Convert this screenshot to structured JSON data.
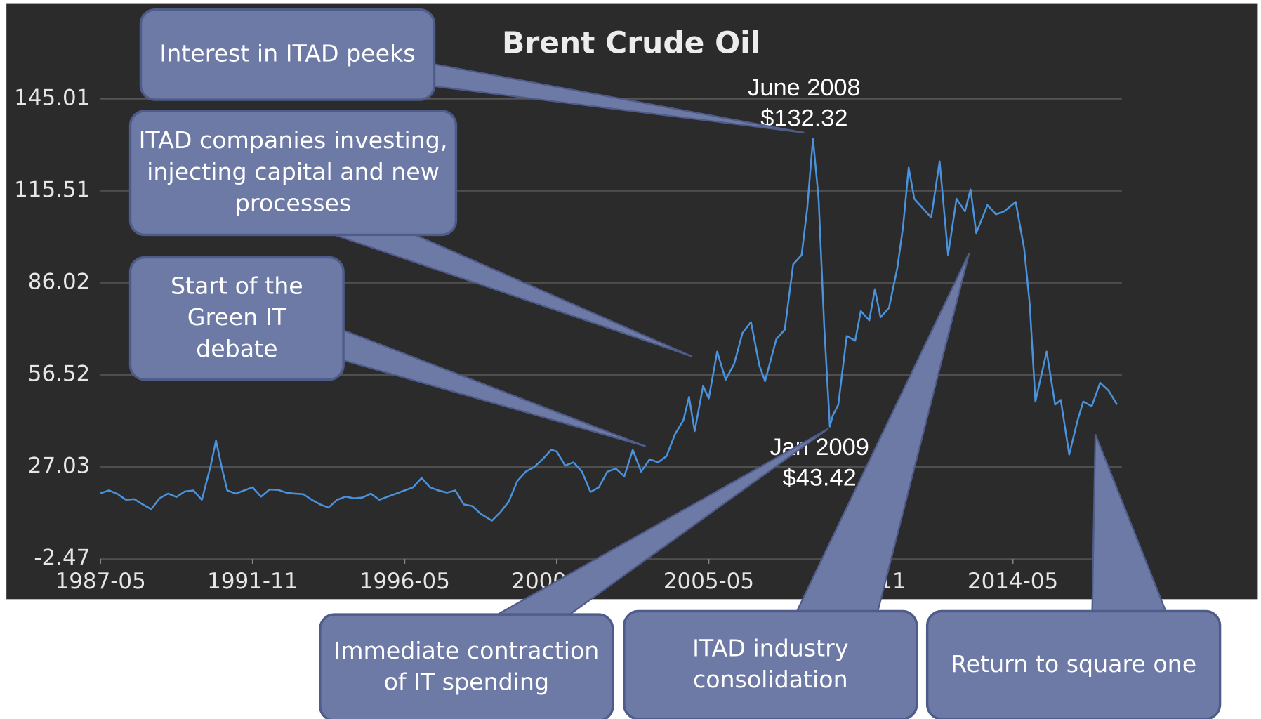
{
  "chart_data": {
    "type": "line",
    "title": "Brent Crude Oil",
    "color": "#4a92dc",
    "grid": true,
    "x": [
      "1987-05",
      "1987-08",
      "1987-11",
      "1988-02",
      "1988-05",
      "1988-08",
      "1988-11",
      "1989-02",
      "1989-05",
      "1989-08",
      "1989-11",
      "1990-02",
      "1990-05",
      "1990-08",
      "1990-10",
      "1990-12",
      "1991-02",
      "1991-05",
      "1991-08",
      "1991-11",
      "1992-02",
      "1992-05",
      "1992-08",
      "1992-11",
      "1993-02",
      "1993-05",
      "1993-08",
      "1993-11",
      "1994-02",
      "1994-05",
      "1994-08",
      "1994-11",
      "1995-02",
      "1995-05",
      "1995-08",
      "1995-11",
      "1996-02",
      "1996-05",
      "1996-08",
      "1996-11",
      "1997-02",
      "1997-05",
      "1997-08",
      "1997-11",
      "1998-02",
      "1998-05",
      "1998-08",
      "1998-12",
      "1999-03",
      "1999-06",
      "1999-09",
      "1999-12",
      "2000-03",
      "2000-06",
      "2000-09",
      "2000-11",
      "2001-02",
      "2001-05",
      "2001-08",
      "2001-11",
      "2002-02",
      "2002-05",
      "2002-08",
      "2002-11",
      "2003-02",
      "2003-05",
      "2003-08",
      "2003-11",
      "2004-02",
      "2004-05",
      "2004-08",
      "2004-10",
      "2004-12",
      "2005-03",
      "2005-05",
      "2005-08",
      "2005-11",
      "2006-02",
      "2006-05",
      "2006-08",
      "2006-11",
      "2007-01",
      "2007-05",
      "2007-08",
      "2007-11",
      "2008-02",
      "2008-04",
      "2008-06",
      "2008-08",
      "2008-10",
      "2008-12",
      "2009-01",
      "2009-03",
      "2009-06",
      "2009-09",
      "2009-11",
      "2010-02",
      "2010-04",
      "2010-06",
      "2010-09",
      "2010-12",
      "2011-02",
      "2011-04",
      "2011-06",
      "2011-09",
      "2011-12",
      "2012-03",
      "2012-06",
      "2012-09",
      "2012-12",
      "2013-02",
      "2013-04",
      "2013-08",
      "2013-11",
      "2014-02",
      "2014-06",
      "2014-09",
      "2014-11",
      "2015-01",
      "2015-05",
      "2015-08",
      "2015-10",
      "2016-01",
      "2016-04",
      "2016-06",
      "2016-09",
      "2016-12",
      "2017-03",
      "2017-06"
    ],
    "values": [
      18.6,
      19.5,
      18.4,
      16.5,
      16.7,
      15.0,
      13.5,
      17.0,
      18.5,
      17.4,
      19.2,
      19.5,
      16.5,
      27.0,
      35.5,
      27.0,
      19.5,
      18.5,
      19.5,
      20.5,
      17.5,
      19.8,
      19.7,
      18.8,
      18.5,
      18.3,
      16.5,
      15.0,
      14.0,
      16.5,
      17.5,
      17.0,
      17.2,
      18.5,
      16.5,
      17.5,
      18.5,
      19.5,
      20.5,
      23.5,
      20.5,
      19.5,
      18.8,
      19.5,
      15.0,
      14.5,
      12.0,
      9.8,
      12.5,
      16.0,
      22.5,
      25.5,
      27.0,
      29.5,
      32.5,
      32.0,
      27.5,
      28.5,
      25.5,
      19.0,
      20.5,
      25.5,
      26.5,
      24.0,
      32.5,
      25.5,
      29.5,
      28.5,
      30.5,
      37.5,
      42.0,
      49.5,
      38.5,
      53.0,
      49.0,
      64.0,
      55.0,
      60.0,
      70.0,
      73.5,
      59.5,
      54.5,
      68.0,
      71.0,
      92.0,
      95.0,
      110.0,
      132.32,
      113.0,
      72.0,
      40.0,
      43.42,
      47.0,
      69.0,
      67.5,
      77.0,
      74.0,
      84.0,
      75.0,
      78.0,
      91.0,
      104.0,
      123.0,
      113.0,
      110.0,
      107.0,
      125.0,
      95.0,
      113.0,
      109.0,
      116.0,
      102.0,
      111.0,
      108.0,
      109.0,
      112.0,
      97.0,
      79.0,
      48.0,
      64.0,
      47.0,
      48.5,
      31.0,
      42.0,
      48.0,
      46.5,
      54.0,
      51.5,
      47.0
    ],
    "xlim": [
      "1987-05",
      "2017-06"
    ],
    "xticks": [
      "1987-05",
      "1991-11",
      "1996-05",
      "2000-11",
      "2005-05",
      "2009-11",
      "2014-05"
    ],
    "ylim": [
      -2.47,
      145.01
    ],
    "yticks": [
      -2.47,
      27.03,
      56.52,
      86.02,
      115.51,
      145.01
    ],
    "annotations": [
      {
        "lines": [
          "June 2008",
          "$132.32"
        ]
      },
      {
        "lines": [
          "Jan 2009",
          "$43.42"
        ]
      }
    ]
  },
  "callouts": [
    {
      "lines": [
        "Interest in ITAD peeks"
      ]
    },
    {
      "lines": [
        "ITAD companies investing,",
        "injecting capital and new",
        "processes"
      ]
    },
    {
      "lines": [
        "Start of the",
        "Green IT",
        "debate"
      ]
    },
    {
      "lines": [
        "Immediate contraction",
        "of IT spending"
      ]
    },
    {
      "lines": [
        "ITAD industry",
        "consolidation"
      ]
    },
    {
      "lines": [
        "Return to square one"
      ]
    }
  ]
}
